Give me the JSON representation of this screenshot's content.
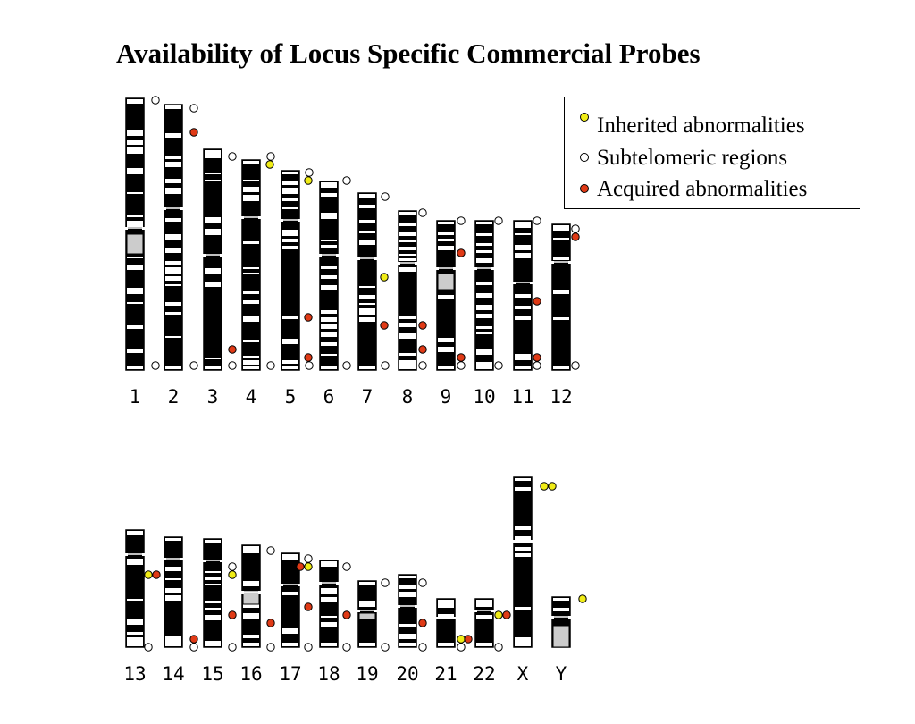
{
  "title": "Availability of Locus Specific Commercial Probes",
  "colors": {
    "inherited": "#f0ec16",
    "subtelomeric": "#ffffff",
    "acquired": "#e03a16",
    "band_dark": "#000000",
    "band_light": "#ffffff",
    "heterochromatin": "#cccccc"
  },
  "legend": [
    {
      "key": "inherited",
      "label": "Inherited abnormalities"
    },
    {
      "key": "subtelomeric",
      "label": "Subtelomeric regions"
    },
    {
      "key": "acquired",
      "label": "Acquired abnormalities"
    }
  ],
  "chromosomes": [
    {
      "label": "1"
    },
    {
      "label": "2"
    },
    {
      "label": "3"
    },
    {
      "label": "4"
    },
    {
      "label": "5"
    },
    {
      "label": "6"
    },
    {
      "label": "7"
    },
    {
      "label": "8"
    },
    {
      "label": "9"
    },
    {
      "label": "10"
    },
    {
      "label": "11"
    },
    {
      "label": "12"
    },
    {
      "label": "13"
    },
    {
      "label": "14"
    },
    {
      "label": "15"
    },
    {
      "label": "16"
    },
    {
      "label": "17"
    },
    {
      "label": "18"
    },
    {
      "label": "19"
    },
    {
      "label": "20"
    },
    {
      "label": "21"
    },
    {
      "label": "22"
    },
    {
      "label": "X"
    },
    {
      "label": "Y"
    }
  ]
}
